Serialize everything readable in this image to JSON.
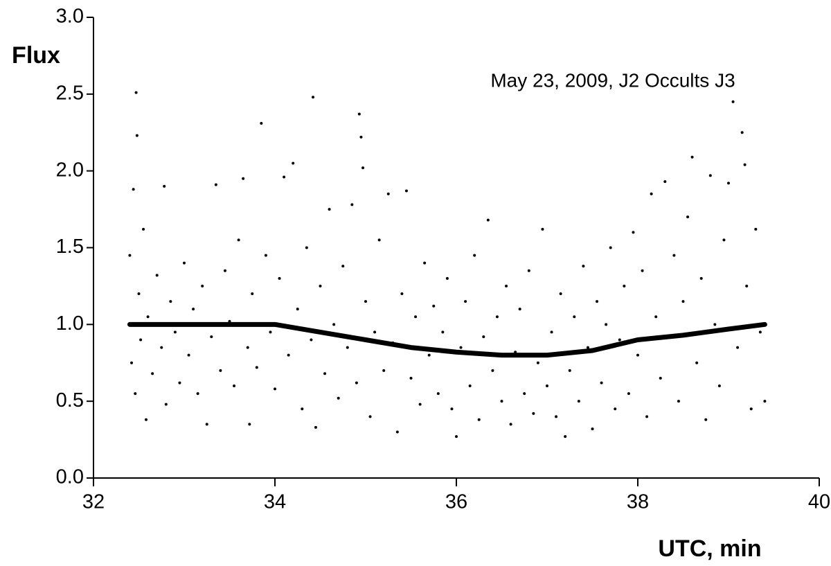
{
  "chart_data": {
    "type": "scatter",
    "annotation": "May 23, 2009, J2 Occults J3",
    "x_label": "UTC, min",
    "y_label": "Flux",
    "xlim": [
      32,
      40
    ],
    "xticks": [
      32,
      34,
      36,
      38,
      40
    ],
    "ylim": [
      0,
      3
    ],
    "yticks": [
      {
        "value": 0,
        "label": "0.0"
      },
      0.5,
      {
        "value": 1,
        "label": "1.0"
      },
      1.5,
      {
        "value": 2,
        "label": "2.0"
      },
      2.5,
      {
        "value": 3,
        "label": "3.0"
      }
    ],
    "series": [
      {
        "color": "#000000",
        "mode": "markers",
        "x": [
          32.4,
          32.42,
          32.44,
          32.46,
          32.47,
          32.48,
          32.5,
          32.52,
          32.55,
          32.58,
          32.6,
          32.65,
          32.7,
          32.75,
          32.78,
          32.8,
          32.85,
          32.9,
          32.95,
          33.0,
          33.05,
          33.1,
          33.15,
          33.2,
          33.25,
          33.3,
          33.35,
          33.4,
          33.45,
          33.5,
          33.55,
          33.6,
          33.65,
          33.7,
          33.72,
          33.75,
          33.8,
          33.85,
          33.9,
          33.95,
          34.0,
          34.05,
          34.1,
          34.15,
          34.2,
          34.25,
          34.3,
          34.35,
          34.4,
          34.42,
          34.45,
          34.5,
          34.55,
          34.6,
          34.65,
          34.7,
          34.75,
          34.8,
          34.85,
          34.9,
          34.93,
          34.95,
          34.97,
          35.0,
          35.05,
          35.1,
          35.15,
          35.2,
          35.25,
          35.3,
          35.35,
          35.4,
          35.45,
          35.5,
          35.55,
          35.6,
          35.65,
          35.7,
          35.75,
          35.8,
          35.85,
          35.9,
          35.95,
          36.0,
          36.05,
          36.1,
          36.15,
          36.2,
          36.25,
          36.3,
          36.35,
          36.4,
          36.45,
          36.5,
          36.55,
          36.6,
          36.65,
          36.7,
          36.75,
          36.8,
          36.85,
          36.9,
          36.95,
          37.0,
          37.05,
          37.1,
          37.15,
          37.2,
          37.25,
          37.3,
          37.35,
          37.4,
          37.45,
          37.5,
          37.55,
          37.6,
          37.65,
          37.7,
          37.75,
          37.8,
          37.85,
          37.9,
          37.95,
          38.0,
          38.05,
          38.1,
          38.15,
          38.2,
          38.25,
          38.3,
          38.35,
          38.4,
          38.45,
          38.5,
          38.55,
          38.6,
          38.65,
          38.7,
          38.75,
          38.8,
          38.85,
          38.9,
          38.95,
          39.0,
          39.05,
          39.1,
          39.15,
          39.18,
          39.2,
          39.25,
          39.3,
          39.35,
          39.4
        ],
        "values": [
          1.45,
          0.75,
          1.88,
          0.55,
          2.51,
          2.23,
          1.2,
          0.9,
          1.62,
          0.38,
          1.05,
          0.68,
          1.32,
          0.85,
          1.9,
          0.48,
          1.15,
          0.95,
          0.62,
          1.4,
          0.8,
          1.1,
          0.55,
          1.25,
          0.35,
          0.92,
          1.91,
          0.7,
          1.35,
          1.02,
          0.6,
          1.55,
          1.95,
          0.85,
          0.35,
          1.2,
          0.72,
          2.31,
          1.45,
          0.95,
          0.58,
          1.3,
          1.96,
          0.8,
          2.05,
          1.1,
          0.45,
          1.5,
          0.9,
          2.48,
          0.33,
          1.25,
          0.68,
          1.75,
          1.0,
          0.52,
          1.38,
          0.85,
          1.78,
          0.62,
          2.37,
          2.22,
          2.02,
          1.15,
          0.4,
          0.95,
          1.55,
          0.7,
          1.85,
          0.88,
          0.3,
          1.2,
          1.87,
          0.65,
          1.05,
          0.48,
          1.4,
          0.8,
          1.12,
          0.55,
          0.95,
          1.3,
          0.45,
          0.27,
          0.85,
          1.15,
          0.6,
          1.45,
          0.38,
          0.92,
          1.68,
          0.7,
          1.05,
          0.5,
          1.25,
          0.35,
          0.82,
          1.1,
          0.55,
          1.35,
          0.42,
          0.75,
          1.62,
          0.6,
          0.95,
          0.4,
          1.2,
          0.27,
          0.7,
          1.05,
          0.5,
          1.38,
          0.85,
          0.32,
          1.15,
          0.62,
          1.0,
          1.5,
          0.45,
          0.9,
          1.25,
          0.55,
          1.6,
          0.8,
          1.35,
          0.4,
          1.85,
          1.05,
          0.65,
          1.93,
          0.92,
          1.45,
          0.5,
          1.15,
          1.7,
          2.09,
          0.75,
          1.3,
          0.38,
          1.97,
          1.0,
          0.6,
          1.55,
          1.92,
          2.45,
          0.85,
          2.25,
          2.04,
          1.25,
          0.45,
          1.62,
          0.95,
          0.5
        ]
      },
      {
        "color": "#000000",
        "mode": "line",
        "x": [
          32.4,
          33,
          34,
          34.5,
          35,
          35.5,
          36,
          36.5,
          37,
          37.5,
          38,
          38.5,
          39,
          39.4
        ],
        "values": [
          1.0,
          1.0,
          1.0,
          0.95,
          0.9,
          0.85,
          0.82,
          0.8,
          0.8,
          0.83,
          0.9,
          0.93,
          0.97,
          1.0
        ]
      }
    ]
  }
}
